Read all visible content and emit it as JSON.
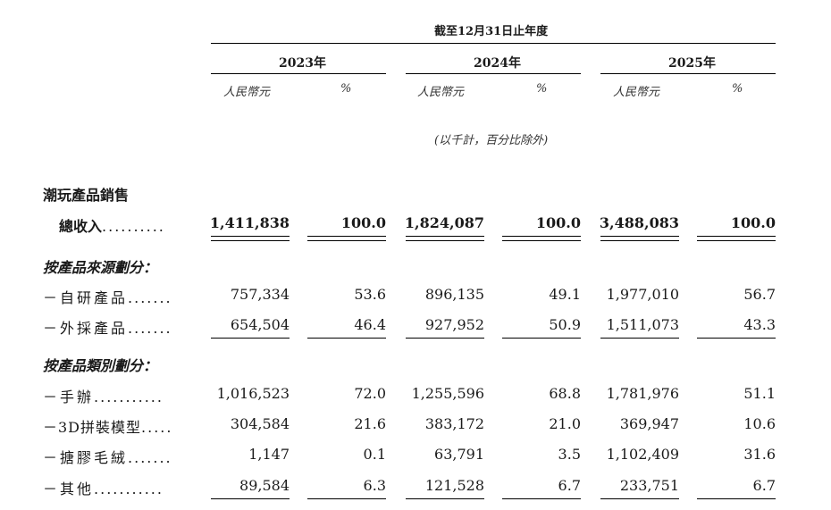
{
  "header": {
    "period": "截至12月31日止年度",
    "years": [
      "2023年",
      "2024年",
      "2025年"
    ],
    "currency": "人民幣元",
    "percent": "%",
    "note": "(以千計，百分比除外)"
  },
  "section_title": "潮玩產品銷售",
  "total": {
    "label": "總收入",
    "dots": "..........",
    "values": [
      "1,411,838",
      "100.0",
      "1,824,087",
      "100.0",
      "3,488,083",
      "100.0"
    ]
  },
  "by_source": {
    "title": "按產品來源劃分：",
    "rows": [
      {
        "label": "－自研產品",
        "dots": ".......",
        "values": [
          "757,334",
          "53.6",
          "896,135",
          "49.1",
          "1,977,010",
          "56.7"
        ]
      },
      {
        "label": "－外採產品",
        "dots": ".......",
        "values": [
          "654,504",
          "46.4",
          "927,952",
          "50.9",
          "1,511,073",
          "43.3"
        ]
      }
    ]
  },
  "by_category": {
    "title": "按產品類別劃分：",
    "rows": [
      {
        "label": "－手辦",
        "dots": "...........",
        "values": [
          "1,016,523",
          "72.0",
          "1,255,596",
          "68.8",
          "1,781,976",
          "51.1"
        ]
      },
      {
        "label": "－3D拼裝模型",
        "dots": ".....",
        "values": [
          "304,584",
          "21.6",
          "383,172",
          "21.0",
          "369,947",
          "10.6"
        ]
      },
      {
        "label": "－搪膠毛絨",
        "dots": ".......",
        "values": [
          "1,147",
          "0.1",
          "63,791",
          "3.5",
          "1,102,409",
          "31.6"
        ]
      },
      {
        "label": "－其他",
        "dots": "...........",
        "values": [
          "89,584",
          "6.3",
          "121,528",
          "6.7",
          "233,751",
          "6.7"
        ]
      }
    ]
  }
}
